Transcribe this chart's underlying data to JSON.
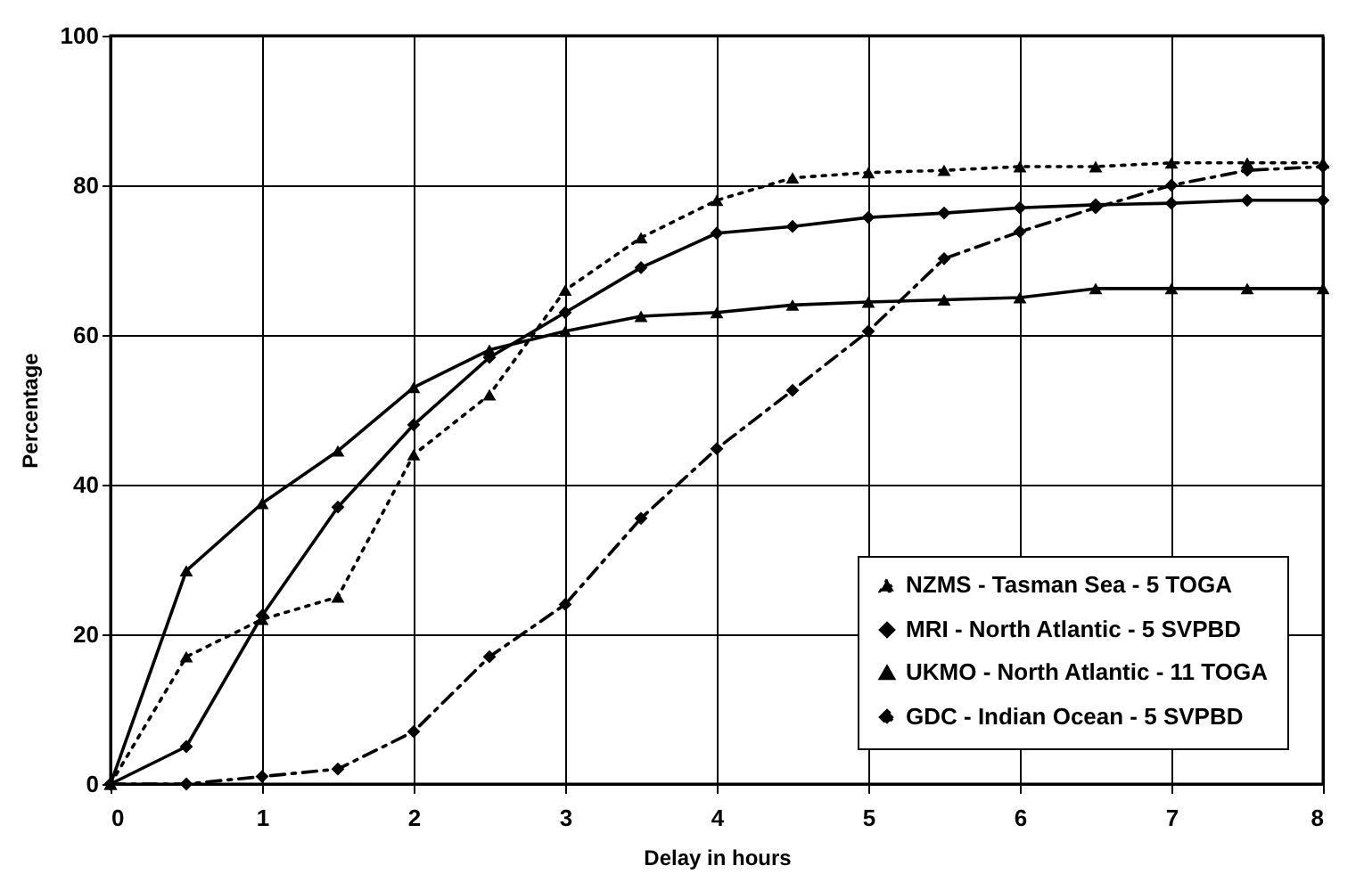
{
  "chart_data": {
    "type": "line",
    "xlabel": "Delay in hours",
    "ylabel": "Percentage",
    "x": [
      0,
      0.5,
      1,
      1.5,
      2,
      2.5,
      3,
      3.5,
      4,
      4.5,
      5,
      5.5,
      6,
      6.5,
      7,
      7.5,
      8
    ],
    "series": [
      {
        "name": "NZMS - Tasman Sea - 5 TOGA",
        "color": "#000000",
        "line_style": "dotted",
        "marker": "triangle",
        "values": [
          0,
          17,
          22,
          25,
          44,
          52,
          66,
          73,
          78,
          81,
          81.7,
          82,
          82.5,
          82.5,
          83,
          83,
          83
        ]
      },
      {
        "name": "MRI - North Atlantic - 5 SVPBD",
        "color": "#000000",
        "line_style": "solid",
        "marker": "diamond",
        "values": [
          0,
          5,
          22.5,
          37,
          48,
          57,
          63,
          69,
          73.6,
          74.5,
          75.7,
          76.3,
          77,
          77.4,
          77.6,
          78,
          78
        ]
      },
      {
        "name": "UKMO - North Atlantic - 11 TOGA",
        "color": "#000000",
        "line_style": "solid",
        "marker": "triangle",
        "values": [
          0,
          28.5,
          37.5,
          44.5,
          53,
          58,
          60.5,
          62.5,
          63,
          64,
          64.4,
          64.7,
          65,
          66.2,
          66.2,
          66.2,
          66.2
        ]
      },
      {
        "name": "GDC - Indian Ocean - 5 SVPBD",
        "color": "#000000",
        "line_style": "dashed",
        "marker": "diamond",
        "values": [
          0,
          0,
          1,
          2,
          7,
          17,
          24,
          35.5,
          44.8,
          52.6,
          60.5,
          70.2,
          73.8,
          77,
          80,
          82,
          82.5
        ]
      }
    ],
    "xlim": [
      0,
      8
    ],
    "xticks": [
      0,
      1,
      2,
      3,
      4,
      5,
      6,
      7,
      8
    ],
    "ylim": [
      0,
      100
    ],
    "yticks": [
      0,
      20,
      40,
      60,
      80,
      100
    ],
    "grid": true,
    "legend": "bottom right"
  }
}
